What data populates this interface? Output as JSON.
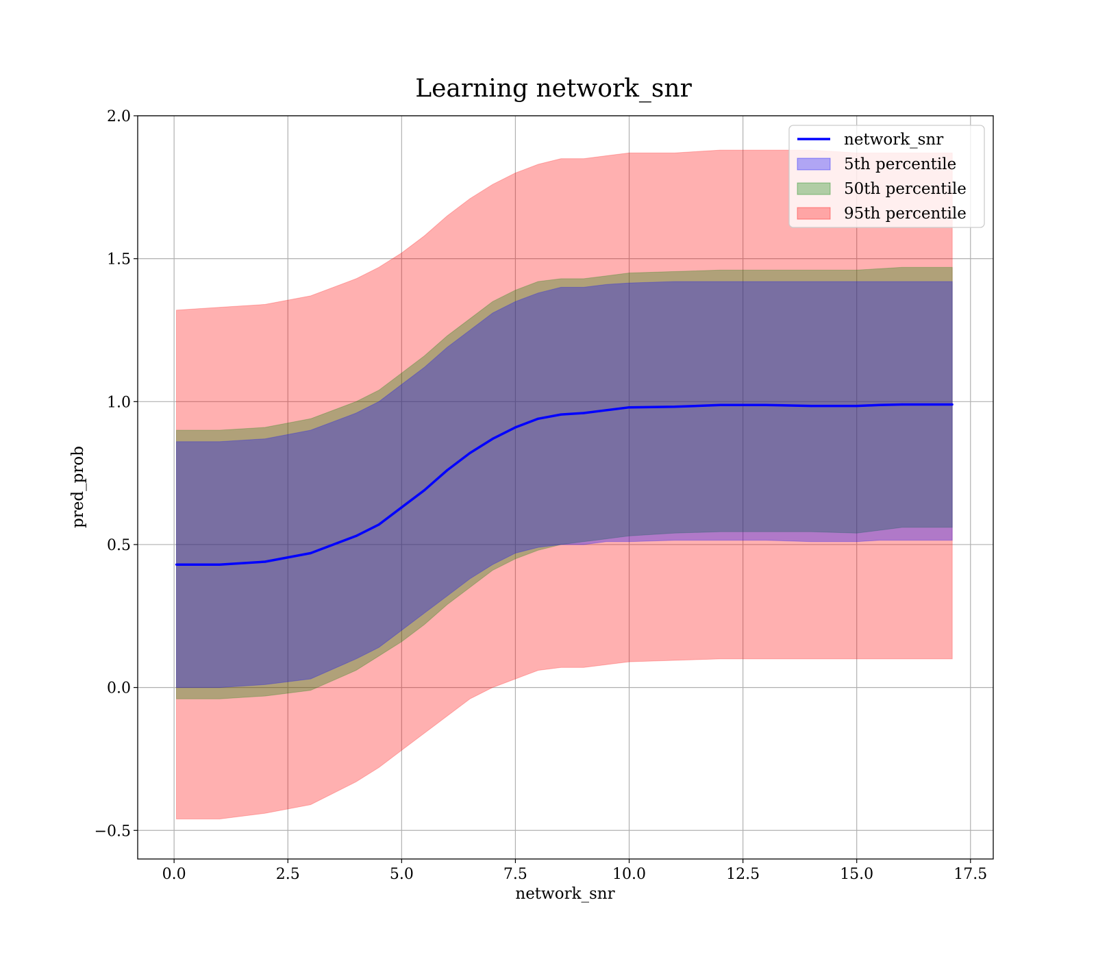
{
  "chart_data": {
    "type": "area",
    "title": "Learning network_snr",
    "xlabel": "network_snr",
    "ylabel": "pred_prob",
    "xlim": [
      -0.8,
      18.0
    ],
    "ylim": [
      -0.6,
      2.0
    ],
    "xticks": [
      0.0,
      2.5,
      5.0,
      7.5,
      10.0,
      12.5,
      15.0,
      17.5
    ],
    "xtick_labels": [
      "0.0",
      "2.5",
      "5.0",
      "7.5",
      "10.0",
      "12.5",
      "15.0",
      "17.5"
    ],
    "yticks": [
      -0.5,
      0.0,
      0.5,
      1.0,
      1.5,
      2.0
    ],
    "ytick_labels": [
      "−0.5",
      "0.0",
      "0.5",
      "1.0",
      "1.5",
      "2.0"
    ],
    "grid": true,
    "legend_position": "top-right",
    "x": [
      0.05,
      1.0,
      2.0,
      3.0,
      4.0,
      4.5,
      5.0,
      5.5,
      6.0,
      6.5,
      7.0,
      7.5,
      8.0,
      8.5,
      9.0,
      9.5,
      10.0,
      11.0,
      12.0,
      13.0,
      14.0,
      15.0,
      15.5,
      16.0,
      17.1
    ],
    "line": {
      "name": "network_snr",
      "color": "#0000ff",
      "values": [
        0.43,
        0.43,
        0.44,
        0.47,
        0.53,
        0.57,
        0.63,
        0.69,
        0.76,
        0.82,
        0.87,
        0.91,
        0.94,
        0.955,
        0.96,
        0.97,
        0.98,
        0.982,
        0.988,
        0.988,
        0.985,
        0.985,
        0.988,
        0.99,
        0.99
      ]
    },
    "bands": [
      {
        "name": "95th percentile",
        "color": "#ff0000",
        "opacity": 0.31,
        "lower": [
          -0.46,
          -0.46,
          -0.44,
          -0.41,
          -0.33,
          -0.28,
          -0.22,
          -0.16,
          -0.1,
          -0.04,
          0.0,
          0.03,
          0.06,
          0.07,
          0.07,
          0.08,
          0.09,
          0.095,
          0.1,
          0.1,
          0.1,
          0.1,
          0.1,
          0.1,
          0.1
        ],
        "upper": [
          1.32,
          1.33,
          1.34,
          1.37,
          1.43,
          1.47,
          1.52,
          1.58,
          1.65,
          1.71,
          1.76,
          1.8,
          1.83,
          1.85,
          1.85,
          1.86,
          1.87,
          1.87,
          1.88,
          1.88,
          1.88,
          1.87,
          1.87,
          1.87,
          1.87
        ]
      },
      {
        "name": "50th percentile",
        "color": "#008000",
        "opacity": 0.31,
        "lower": [
          -0.04,
          -0.04,
          -0.03,
          -0.01,
          0.06,
          0.11,
          0.16,
          0.22,
          0.29,
          0.35,
          0.41,
          0.45,
          0.48,
          0.5,
          0.51,
          0.52,
          0.53,
          0.54,
          0.545,
          0.545,
          0.545,
          0.54,
          0.55,
          0.56,
          0.56
        ],
        "upper": [
          0.9,
          0.9,
          0.91,
          0.94,
          1.0,
          1.04,
          1.1,
          1.16,
          1.23,
          1.29,
          1.35,
          1.39,
          1.42,
          1.43,
          1.43,
          1.44,
          1.45,
          1.455,
          1.46,
          1.46,
          1.46,
          1.46,
          1.465,
          1.47,
          1.47
        ]
      },
      {
        "name": "5th percentile",
        "color": "#0000ff",
        "opacity": 0.31,
        "lower": [
          0.0,
          0.0,
          0.01,
          0.03,
          0.1,
          0.14,
          0.2,
          0.26,
          0.32,
          0.38,
          0.43,
          0.47,
          0.49,
          0.5,
          0.5,
          0.51,
          0.51,
          0.515,
          0.515,
          0.515,
          0.51,
          0.51,
          0.515,
          0.515,
          0.515
        ],
        "upper": [
          0.86,
          0.86,
          0.87,
          0.9,
          0.96,
          1.0,
          1.06,
          1.12,
          1.19,
          1.25,
          1.31,
          1.35,
          1.38,
          1.4,
          1.4,
          1.41,
          1.415,
          1.42,
          1.42,
          1.42,
          1.42,
          1.42,
          1.42,
          1.42,
          1.42
        ]
      }
    ],
    "legend": [
      "network_snr",
      "5th percentile",
      "50th percentile",
      "95th percentile"
    ]
  }
}
